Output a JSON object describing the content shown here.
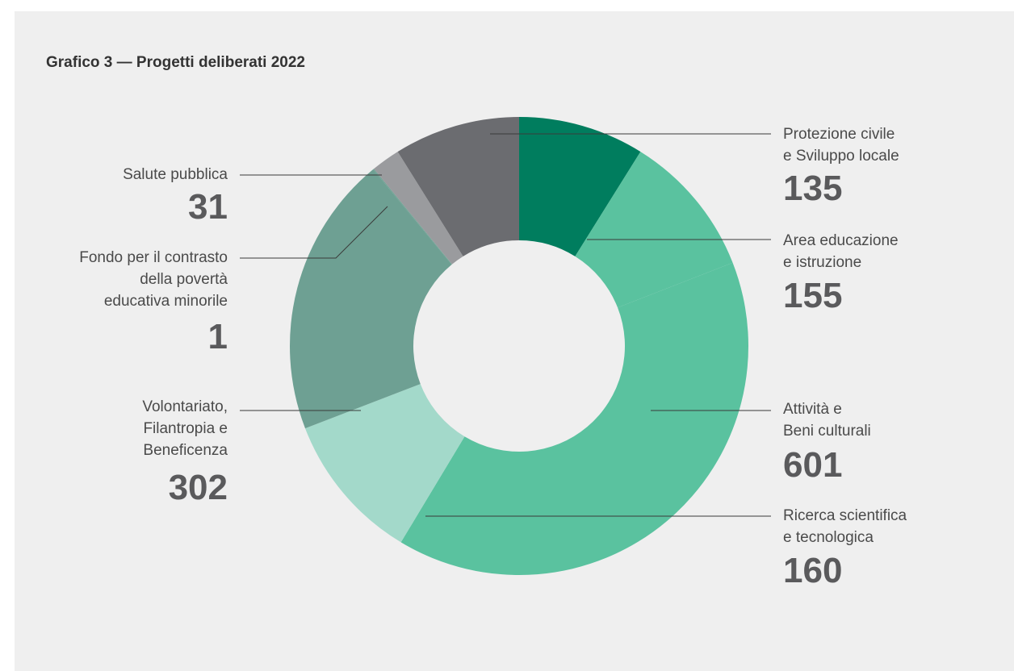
{
  "chart_data": {
    "type": "pie",
    "variant": "donut",
    "title": "Grafico 3 — Progetti deliberati 2022",
    "slices": [
      {
        "label_lines": [
          "Protezione civile",
          "e Sviluppo locale"
        ],
        "value": 135,
        "value_label": "135",
        "color": "#007d5e"
      },
      {
        "label_lines": [
          "Area educazione",
          "e istruzione"
        ],
        "value": 155,
        "value_label": "155",
        "color": "#5ac29f"
      },
      {
        "label_lines": [
          "Attività e",
          "Beni culturali"
        ],
        "value": 601,
        "value_label": "601",
        "color": "#5ac29f"
      },
      {
        "label_lines": [
          "Ricerca scientifica",
          "e tecnologica"
        ],
        "value": 160,
        "value_label": "160",
        "color": "#a3d9ca"
      },
      {
        "label_lines": [
          "Volontariato,",
          "Filantropia e",
          "Beneficenza"
        ],
        "value": 302,
        "value_label": "302",
        "color": "#6ea093"
      },
      {
        "label_lines": [
          "Fondo per il contrasto",
          "della povertà",
          "educativa minorile"
        ],
        "value": 1,
        "value_label": "1",
        "color": "#6ea093"
      },
      {
        "label_lines": [
          "Salute pubblica"
        ],
        "value": 31,
        "value_label": "31",
        "color": "#9a9b9e"
      },
      {
        "label_lines": [],
        "value": 135,
        "color": "#6b6c70"
      }
    ]
  }
}
